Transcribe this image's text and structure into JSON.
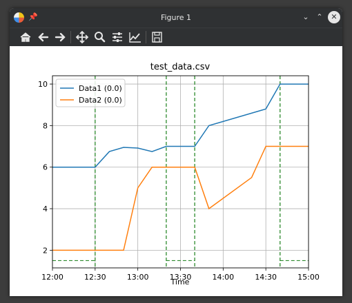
{
  "window": {
    "title": "Figure 1"
  },
  "toolbar": {
    "buttons": [
      {
        "name": "home-icon"
      },
      {
        "name": "back-arrow-icon"
      },
      {
        "name": "forward-arrow-icon"
      },
      {
        "name": "pan-icon"
      },
      {
        "name": "zoom-icon"
      },
      {
        "name": "configure-subplots-icon"
      },
      {
        "name": "edit-axis-icon"
      },
      {
        "name": "save-icon"
      }
    ]
  },
  "colors": {
    "data1": "#1f77b4",
    "data2": "#ff7f0e",
    "markers": "#2c8a2c"
  },
  "chart_data": {
    "type": "line",
    "title": "test_data.csv",
    "xlabel": "Time",
    "ylabel": "",
    "xlim": [
      "12:00",
      "15:00"
    ],
    "ylim": [
      1.15,
      10.4
    ],
    "grid": true,
    "legend": "top-left",
    "x_ticks": [
      "12:00",
      "12:30",
      "13:00",
      "13:30",
      "14:00",
      "14:30",
      "15:00"
    ],
    "y_ticks": [
      2,
      4,
      6,
      8,
      10
    ],
    "series": [
      {
        "name": "Data1 (0.0)",
        "x": [
          "12:00",
          "12:30",
          "12:40",
          "12:50",
          "13:00",
          "13:10",
          "13:20",
          "13:40",
          "13:50",
          "14:30",
          "14:40",
          "15:00"
        ],
        "y": [
          6,
          6,
          6.75,
          6.95,
          6.92,
          6.75,
          7,
          7,
          8,
          8.8,
          10,
          10
        ]
      },
      {
        "name": "Data2 (0.0)",
        "x": [
          "12:00",
          "12:50",
          "13:00",
          "13:10",
          "13:40",
          "13:50",
          "14:20",
          "14:30",
          "15:00"
        ],
        "y": [
          2,
          2,
          5,
          6,
          6,
          4,
          5.5,
          7,
          7
        ]
      }
    ],
    "vertical_markers": [
      "12:30",
      "13:20",
      "13:40",
      "14:40"
    ],
    "horizontal_segments": [
      {
        "x": [
          "12:00",
          "12:30"
        ],
        "y": 1.5
      },
      {
        "x": [
          "13:20",
          "13:40"
        ],
        "y": 1.5
      },
      {
        "x": [
          "14:40",
          "15:00"
        ],
        "y": 1.5
      }
    ]
  }
}
